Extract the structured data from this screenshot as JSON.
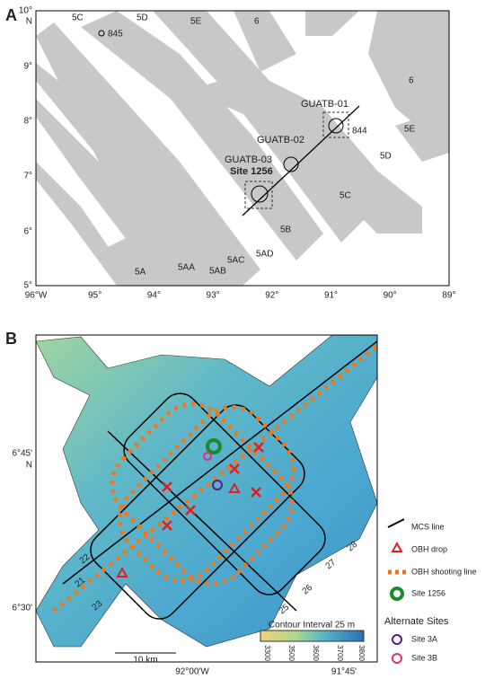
{
  "panel_a": {
    "label": "A",
    "lat_labels": [
      "10°",
      "N",
      "9°",
      "8°",
      "7°",
      "6°",
      "5°"
    ],
    "lon_labels": [
      "96°W",
      "95°",
      "94°",
      "93°",
      "92°",
      "91°",
      "90°",
      "89°"
    ],
    "anomalies": [
      "5C",
      "5D",
      "5E",
      "6",
      "6",
      "5E",
      "5D",
      "5C",
      "5B",
      "5AD",
      "5AC",
      "5AB",
      "5AA",
      "5A"
    ],
    "sites": [
      "845",
      "844",
      "GUATB-01",
      "GUATB-02",
      "GUATB-03",
      "Site 1256"
    ]
  },
  "panel_b": {
    "label": "B",
    "lat_labels": [
      "6°45'",
      "N",
      "6°30'"
    ],
    "lon_labels": [
      "92°00'W",
      "91°45'"
    ],
    "line_numbers": [
      "22",
      "21",
      "23",
      "28",
      "27",
      "26",
      "25"
    ],
    "contour_interval": "Contour Interval 25 m",
    "colorbar_ticks": [
      "3300",
      "3500",
      "3600",
      "3700",
      "3800"
    ],
    "scale_bar": "10 km",
    "legend": [
      "MCS line",
      "OBH drop",
      "OBH shooting line",
      "Site 1256"
    ],
    "alternate_title": "Alternate Sites",
    "alternate": [
      "Site 3A",
      "Site 3B"
    ]
  }
}
